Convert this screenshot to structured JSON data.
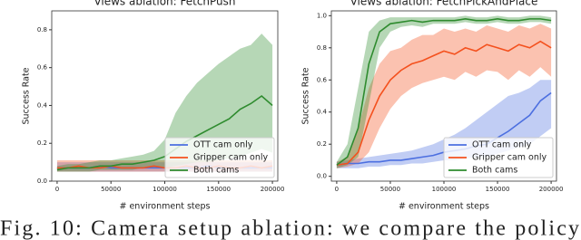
{
  "chart_data": [
    {
      "type": "line",
      "title": "Views ablation: FetchPush",
      "x_label": "# environment steps",
      "y_label": "Success Rate",
      "x": [
        0,
        10000,
        20000,
        30000,
        40000,
        50000,
        60000,
        70000,
        80000,
        90000,
        100000,
        110000,
        120000,
        130000,
        140000,
        150000,
        160000,
        170000,
        180000,
        190000,
        200000
      ],
      "xlim": [
        -5000,
        205000
      ],
      "xticks": [
        0,
        50000,
        100000,
        150000,
        200000
      ],
      "ylim": [
        0,
        0.9
      ],
      "yticks": [
        {
          "value": 0,
          "label": "0.0"
        },
        0.2,
        0.4,
        0.6,
        0.8
      ],
      "legend": "lower right",
      "series": [
        {
          "name": "OTT cam only",
          "color": "#4c6fe0",
          "values": [
            0.07,
            0.07,
            0.07,
            0.07,
            0.08,
            0.07,
            0.07,
            0.07,
            0.07,
            0.07,
            0.07,
            0.07,
            0.07,
            0.07,
            0.08,
            0.07,
            0.07,
            0.07,
            0.07,
            0.07,
            0.07
          ],
          "lower": [
            0.05,
            0.05,
            0.05,
            0.05,
            0.05,
            0.05,
            0.05,
            0.05,
            0.05,
            0.05,
            0.05,
            0.05,
            0.05,
            0.05,
            0.05,
            0.05,
            0.05,
            0.05,
            0.05,
            0.05,
            0.05
          ],
          "upper": [
            0.1,
            0.1,
            0.1,
            0.1,
            0.1,
            0.1,
            0.1,
            0.1,
            0.1,
            0.1,
            0.1,
            0.1,
            0.1,
            0.1,
            0.1,
            0.1,
            0.1,
            0.1,
            0.1,
            0.1,
            0.1
          ]
        },
        {
          "name": "Gripper cam only",
          "color": "#f4511e",
          "values": [
            0.07,
            0.07,
            0.08,
            0.07,
            0.07,
            0.08,
            0.07,
            0.07,
            0.07,
            0.08,
            0.07,
            0.07,
            0.08,
            0.07,
            0.07,
            0.08,
            0.07,
            0.07,
            0.08,
            0.07,
            0.08
          ],
          "lower": [
            0.05,
            0.05,
            0.05,
            0.05,
            0.05,
            0.05,
            0.05,
            0.05,
            0.05,
            0.05,
            0.05,
            0.05,
            0.05,
            0.05,
            0.05,
            0.05,
            0.05,
            0.05,
            0.05,
            0.05,
            0.05
          ],
          "upper": [
            0.11,
            0.11,
            0.11,
            0.11,
            0.11,
            0.11,
            0.11,
            0.11,
            0.11,
            0.11,
            0.11,
            0.11,
            0.11,
            0.11,
            0.11,
            0.11,
            0.11,
            0.11,
            0.11,
            0.11,
            0.11
          ]
        },
        {
          "name": "Both cams",
          "color": "#2e8b2e",
          "values": [
            0.06,
            0.07,
            0.07,
            0.07,
            0.08,
            0.08,
            0.09,
            0.09,
            0.1,
            0.11,
            0.13,
            0.17,
            0.21,
            0.24,
            0.27,
            0.3,
            0.33,
            0.38,
            0.41,
            0.45,
            0.4
          ],
          "lower": [
            0.05,
            0.05,
            0.05,
            0.05,
            0.06,
            0.06,
            0.06,
            0.06,
            0.07,
            0.07,
            0.07,
            0.08,
            0.09,
            0.1,
            0.1,
            0.11,
            0.12,
            0.13,
            0.15,
            0.17,
            0.15
          ],
          "upper": [
            0.08,
            0.09,
            0.09,
            0.1,
            0.11,
            0.11,
            0.12,
            0.13,
            0.14,
            0.16,
            0.22,
            0.36,
            0.45,
            0.52,
            0.57,
            0.62,
            0.66,
            0.7,
            0.72,
            0.78,
            0.72
          ]
        }
      ]
    },
    {
      "type": "line",
      "title": "Views ablation: FetchPickAndPlace",
      "x_label": "# environment steps",
      "y_label": "Success Rate",
      "x": [
        0,
        10000,
        20000,
        30000,
        40000,
        50000,
        60000,
        70000,
        80000,
        90000,
        100000,
        110000,
        120000,
        130000,
        140000,
        150000,
        160000,
        170000,
        180000,
        190000,
        200000
      ],
      "xlim": [
        -5000,
        205000
      ],
      "xticks": [
        0,
        50000,
        100000,
        150000,
        200000
      ],
      "ylim": [
        -0.03,
        1.03
      ],
      "yticks": [
        {
          "value": 0,
          "label": "0.0"
        },
        0.2,
        0.4,
        0.6,
        0.8,
        {
          "value": 1,
          "label": "1.0"
        }
      ],
      "legend": "lower right",
      "series": [
        {
          "name": "OTT cam only",
          "color": "#4c6fe0",
          "values": [
            0.07,
            0.08,
            0.08,
            0.09,
            0.09,
            0.1,
            0.1,
            0.11,
            0.12,
            0.13,
            0.15,
            0.16,
            0.17,
            0.19,
            0.2,
            0.24,
            0.28,
            0.33,
            0.38,
            0.47,
            0.52
          ],
          "lower": [
            0.05,
            0.05,
            0.05,
            0.06,
            0.06,
            0.07,
            0.07,
            0.08,
            0.08,
            0.09,
            0.1,
            0.1,
            0.11,
            0.12,
            0.12,
            0.14,
            0.16,
            0.18,
            0.2,
            0.25,
            0.3
          ],
          "upper": [
            0.09,
            0.1,
            0.11,
            0.12,
            0.13,
            0.14,
            0.15,
            0.16,
            0.18,
            0.2,
            0.23,
            0.26,
            0.3,
            0.35,
            0.4,
            0.45,
            0.5,
            0.52,
            0.55,
            0.6,
            0.6
          ]
        },
        {
          "name": "Gripper cam only",
          "color": "#f4511e",
          "values": [
            0.07,
            0.08,
            0.15,
            0.35,
            0.5,
            0.6,
            0.66,
            0.7,
            0.72,
            0.75,
            0.78,
            0.76,
            0.8,
            0.78,
            0.82,
            0.8,
            0.78,
            0.82,
            0.8,
            0.84,
            0.8
          ],
          "lower": [
            0.05,
            0.06,
            0.08,
            0.15,
            0.3,
            0.42,
            0.5,
            0.55,
            0.58,
            0.6,
            0.62,
            0.6,
            0.65,
            0.62,
            0.66,
            0.65,
            0.6,
            0.66,
            0.62,
            0.68,
            0.62
          ],
          "upper": [
            0.09,
            0.12,
            0.3,
            0.55,
            0.7,
            0.78,
            0.8,
            0.85,
            0.88,
            0.88,
            0.92,
            0.9,
            0.92,
            0.9,
            0.94,
            0.92,
            0.9,
            0.94,
            0.92,
            0.95,
            0.92
          ]
        },
        {
          "name": "Both cams",
          "color": "#2e8b2e",
          "values": [
            0.07,
            0.12,
            0.3,
            0.7,
            0.9,
            0.95,
            0.96,
            0.97,
            0.96,
            0.97,
            0.97,
            0.97,
            0.98,
            0.97,
            0.97,
            0.98,
            0.97,
            0.97,
            0.98,
            0.98,
            0.97
          ],
          "lower": [
            0.05,
            0.07,
            0.12,
            0.45,
            0.8,
            0.9,
            0.93,
            0.94,
            0.93,
            0.95,
            0.95,
            0.95,
            0.96,
            0.95,
            0.95,
            0.96,
            0.95,
            0.95,
            0.96,
            0.96,
            0.95
          ],
          "upper": [
            0.09,
            0.2,
            0.55,
            0.9,
            0.97,
            0.99,
            0.99,
            0.99,
            0.99,
            0.99,
            0.99,
            0.99,
            1.0,
            0.99,
            0.99,
            1.0,
            0.99,
            0.99,
            1.0,
            1.0,
            0.99
          ]
        }
      ]
    }
  ],
  "caption": "Fig. 10: Camera setup ablation: we compare the policy"
}
